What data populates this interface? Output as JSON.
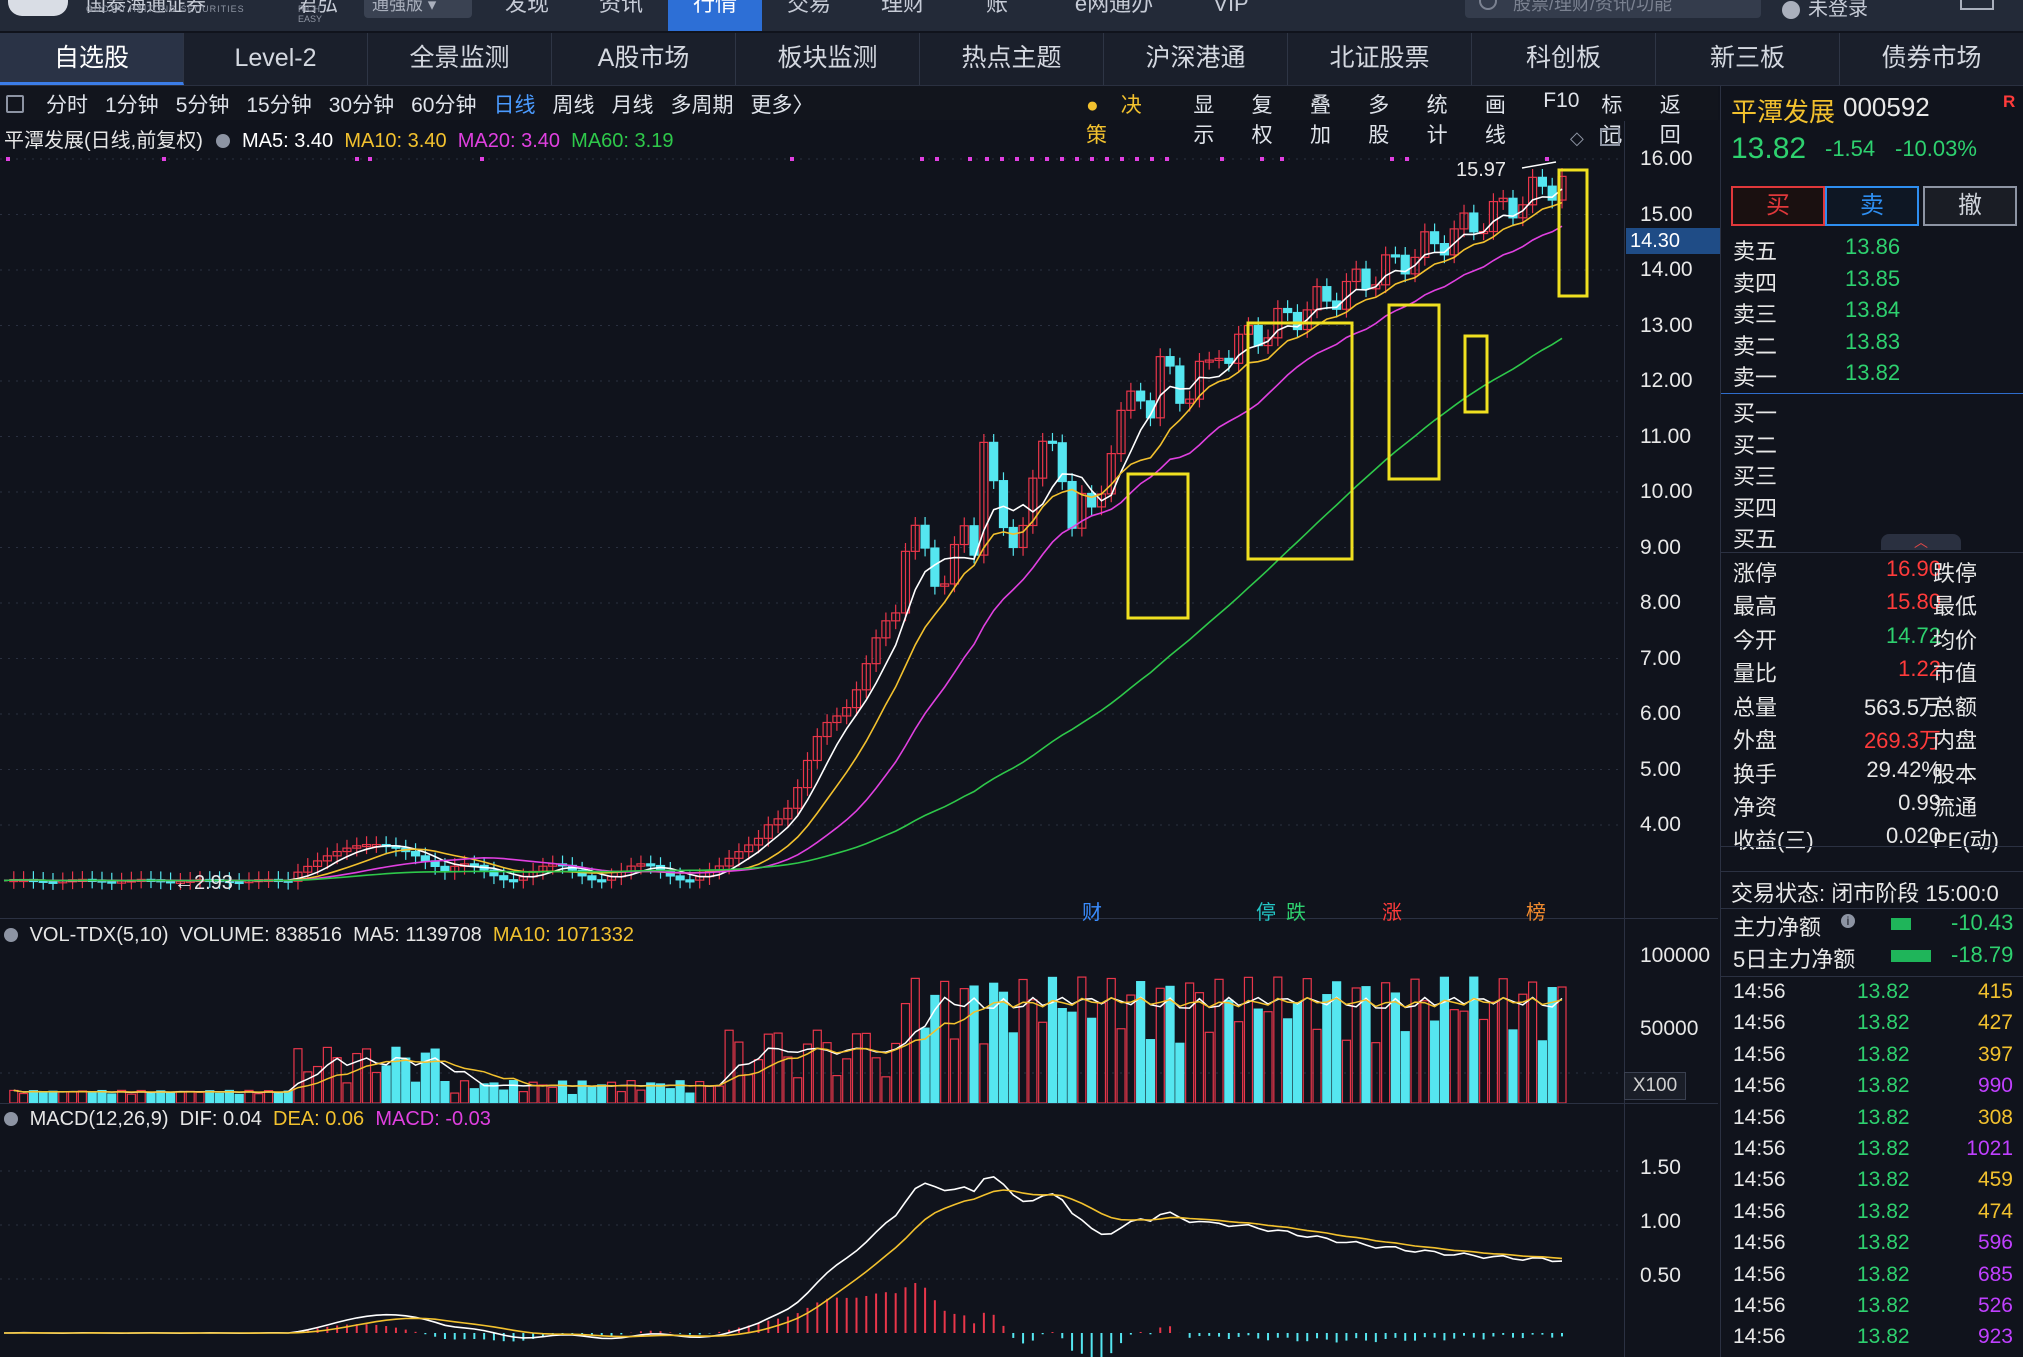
{
  "topbar": {
    "logo_cn": "国泰海通证券",
    "logo_en": "GUOTAI HAITONG SECURITIES",
    "brand": "君弘",
    "brand_en": "RICH EASY",
    "edition": "通强版 ▾",
    "nav": [
      "发现",
      "资讯",
      "行情",
      "交易",
      "理财",
      "账",
      "e网通办",
      "VIP"
    ],
    "active_nav": "行情",
    "search_placeholder": "股票/理财/资讯/功能",
    "login": "未登录"
  },
  "market_tabs": [
    "自选股",
    "Level-2",
    "全景监测",
    "A股市场",
    "板块监测",
    "热点主题",
    "沪深港通",
    "北证股票",
    "科创板",
    "新三板",
    "债券市场"
  ],
  "active_market_tab": "自选股",
  "toolbar": {
    "periods": [
      "分时",
      "1分钟",
      "5分钟",
      "15分钟",
      "30分钟",
      "60分钟",
      "日线",
      "周线",
      "月线",
      "多周期",
      "更多〉"
    ],
    "selected_period": "日线",
    "tools": [
      "决策",
      "显示",
      "复权",
      "叠加",
      "多股",
      "统计",
      "画线",
      "F10",
      "标记",
      "返回"
    ]
  },
  "kline": {
    "title": "平潭发展(日线,前复权)",
    "ma5": "MA5: 3.40",
    "ma10": "MA10: 3.40",
    "ma20": "MA20: 3.40",
    "ma60": "MA60: 3.19",
    "high_marker": "15.97",
    "low_marker": "←2.93",
    "current_price_tag": "14.30",
    "event_tags": [
      {
        "text": "财",
        "color": "#3a8dff"
      },
      {
        "text": "停",
        "color": "#23c5c5"
      },
      {
        "text": "跌",
        "color": "#2ed16f"
      },
      {
        "text": "涨",
        "color": "#ff3b3b"
      },
      {
        "text": "榜",
        "color": "#f08a2e"
      }
    ],
    "y_ticks": [
      "16.00",
      "15.00",
      "14.00",
      "13.00",
      "12.00",
      "11.00",
      "10.00",
      "9.00",
      "8.00",
      "7.00",
      "6.00",
      "5.00",
      "4.00"
    ]
  },
  "volume": {
    "title": "VOL-TDX(5,10)",
    "volume": "VOLUME: 838516",
    "ma5": "MA5: 1139708",
    "ma10": "MA10: 1071332",
    "y_ticks": [
      "100000",
      "50000"
    ],
    "unit": "X100"
  },
  "macd": {
    "title": "MACD(12,26,9)",
    "dif": "DIF: 0.04",
    "dea": "DEA: 0.06",
    "macd": "MACD: -0.03",
    "y_ticks": [
      "1.50",
      "1.00",
      "0.50"
    ]
  },
  "quote": {
    "name": "平潭发展",
    "code": "000592",
    "badge": "R",
    "price": "13.82",
    "change": "-1.54",
    "change_pct": "-10.03%",
    "buy": "买",
    "sell": "卖",
    "cancel": "撤",
    "asks": [
      {
        "label": "卖五",
        "price": "13.86"
      },
      {
        "label": "卖四",
        "price": "13.85"
      },
      {
        "label": "卖三",
        "price": "13.84"
      },
      {
        "label": "卖二",
        "price": "13.83"
      },
      {
        "label": "卖一",
        "price": "13.82"
      }
    ],
    "bids": [
      "买一",
      "买二",
      "买三",
      "买四",
      "买五"
    ],
    "stats": [
      {
        "l": "涨停",
        "v": "16.90",
        "c": "#ff3b3b",
        "r": "跌停"
      },
      {
        "l": "最高",
        "v": "15.80",
        "c": "#ff3b3b",
        "r": "最低"
      },
      {
        "l": "今开",
        "v": "14.72",
        "c": "#2ed16f",
        "r": "均价"
      },
      {
        "l": "量比",
        "v": "1.22",
        "c": "#ff3b3b",
        "r": "市值"
      },
      {
        "l": "总量",
        "v": "563.5万",
        "c": "#e8e8e8",
        "r": "总额"
      },
      {
        "l": "外盘",
        "v": "269.3万",
        "c": "#ff3b3b",
        "r": "内盘"
      },
      {
        "l": "换手",
        "v": "29.42%",
        "c": "#e8e8e8",
        "r": "股本"
      },
      {
        "l": "净资",
        "v": "0.99",
        "c": "#e8e8e8",
        "r": "流通"
      },
      {
        "l": "收益(三)",
        "v": "0.020",
        "c": "#e8e8e8",
        "r": "PE(动)"
      }
    ],
    "trade_status": "交易状态: 闭市阶段 15:00:0",
    "main_net": {
      "label": "主力净额",
      "value": "-10.43"
    },
    "main_net_5d": {
      "label": "5日主力净额",
      "value": "-18.79"
    },
    "ticks": [
      {
        "t": "14:56",
        "p": "13.82",
        "v": "415",
        "c": "#f2c12e"
      },
      {
        "t": "14:56",
        "p": "13.82",
        "v": "427",
        "c": "#f2c12e"
      },
      {
        "t": "14:56",
        "p": "13.82",
        "v": "397",
        "c": "#f2c12e"
      },
      {
        "t": "14:56",
        "p": "13.82",
        "v": "990",
        "c": "#c040ff"
      },
      {
        "t": "14:56",
        "p": "13.82",
        "v": "308",
        "c": "#f2c12e"
      },
      {
        "t": "14:56",
        "p": "13.82",
        "v": "1021",
        "c": "#c040ff"
      },
      {
        "t": "14:56",
        "p": "13.82",
        "v": "459",
        "c": "#f2c12e"
      },
      {
        "t": "14:56",
        "p": "13.82",
        "v": "474",
        "c": "#f2c12e"
      },
      {
        "t": "14:56",
        "p": "13.82",
        "v": "596",
        "c": "#c040ff"
      },
      {
        "t": "14:56",
        "p": "13.82",
        "v": "685",
        "c": "#c040ff"
      },
      {
        "t": "14:56",
        "p": "13.82",
        "v": "526",
        "c": "#c040ff"
      },
      {
        "t": "14:56",
        "p": "13.82",
        "v": "923",
        "c": "#c040ff"
      }
    ]
  }
}
